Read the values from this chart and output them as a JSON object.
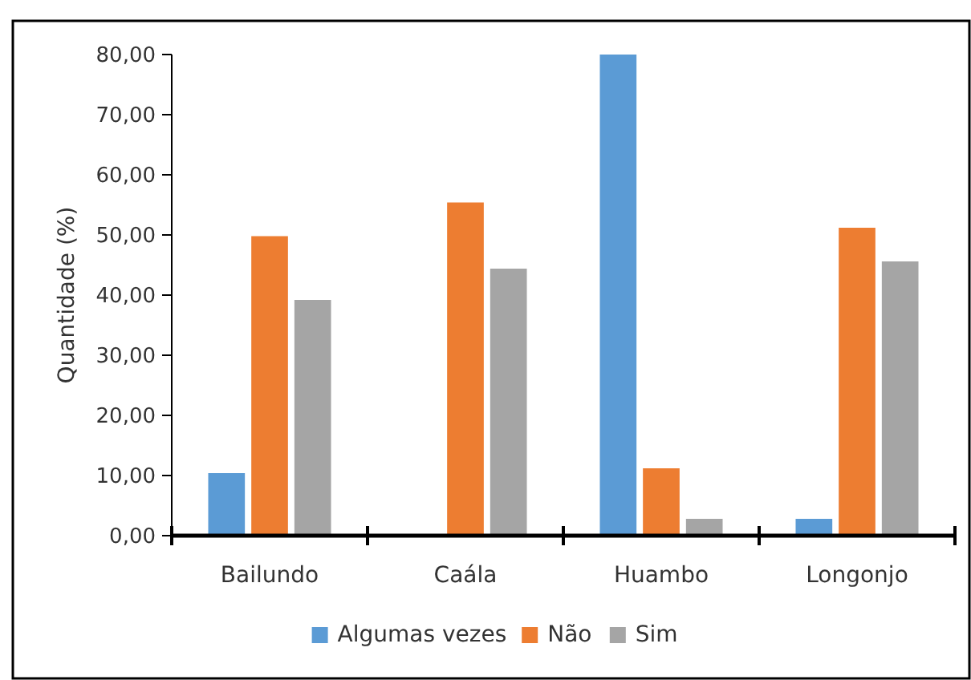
{
  "chart_data": {
    "type": "bar",
    "ylabel": "Quantidade (%)",
    "categories": [
      "Bailundo",
      "Caála",
      "Huambo",
      "Longonjo"
    ],
    "series": [
      {
        "name": "Algumas vezes",
        "color": "#5b9bd5",
        "values": [
          10.4,
          0,
          80.0,
          2.8
        ]
      },
      {
        "name": "Não",
        "color": "#ed7d31",
        "values": [
          49.8,
          55.4,
          11.2,
          51.2
        ]
      },
      {
        "name": "Sim",
        "color": "#a5a5a5",
        "values": [
          39.2,
          44.4,
          2.8,
          45.6
        ]
      }
    ],
    "ylim": [
      0,
      80
    ],
    "yticks": [
      {
        "value": 0,
        "label": "0,00"
      },
      {
        "value": 10,
        "label": "10,00"
      },
      {
        "value": 20,
        "label": "20,00"
      },
      {
        "value": 30,
        "label": "30,00"
      },
      {
        "value": 40,
        "label": "40,00"
      },
      {
        "value": 50,
        "label": "50,00"
      },
      {
        "value": 60,
        "label": "60,00"
      },
      {
        "value": 70,
        "label": "70,00"
      },
      {
        "value": 80,
        "label": "80,00"
      }
    ],
    "grid": false,
    "legend": "bottom"
  }
}
